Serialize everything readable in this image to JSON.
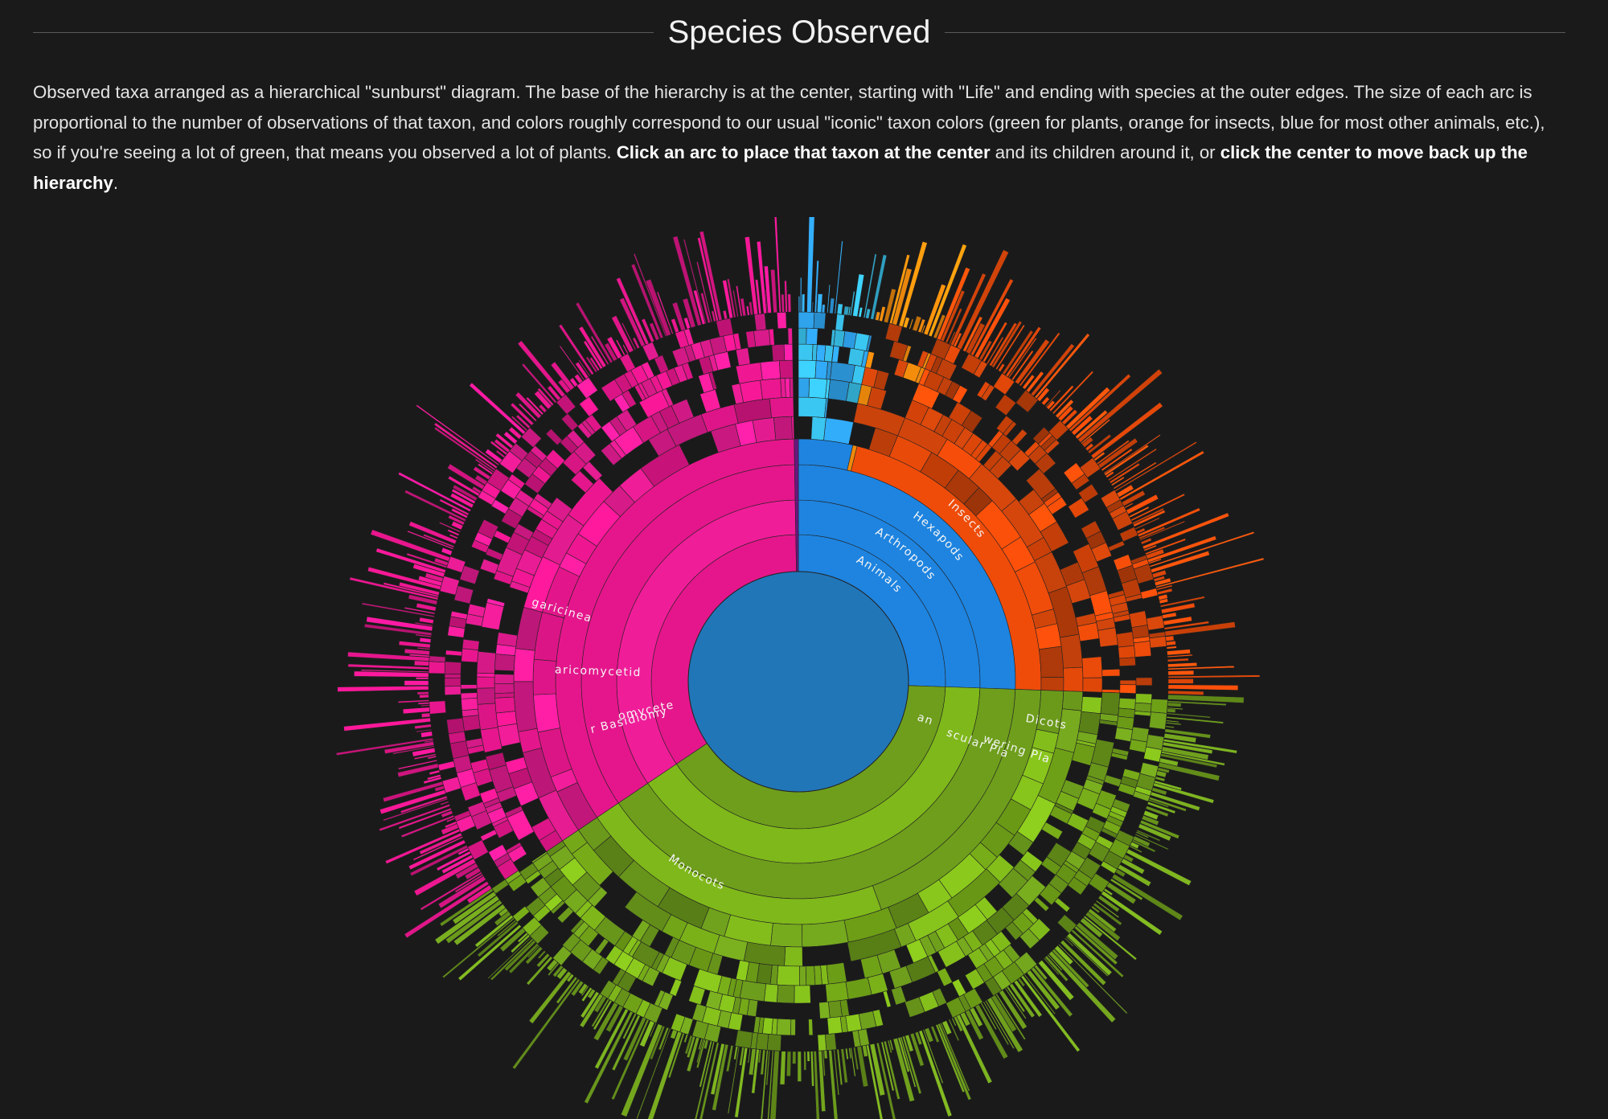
{
  "header": {
    "title": "Species Observed"
  },
  "description": {
    "part1": "Observed taxa arranged as a hierarchical \"sunburst\" diagram. The base of the hierarchy is at the center, starting with \"Life\" and ending with species at the outer edges. The size of each arc is proportional to the number of observations of that taxon, and colors roughly correspond to our usual \"iconic\" taxon colors (green for plants, orange for insects, blue for most other animals, etc.), so if you're seeing a lot of green, that means you observed a lot of plants. ",
    "bold1": "Click an arc to place that taxon at the center",
    "part2": " and its children around it, or ",
    "bold2": "click the center to move back up the hierarchy",
    "part3": "."
  },
  "sunburst": {
    "center": {
      "color": "#2176b8"
    },
    "labels": {
      "animals": "Animals",
      "arthropods": "Arthropods",
      "hexapods": "Hexapods",
      "insects": "Insects",
      "plants": "Plants",
      "vascular_plants": "Vascular Plants",
      "flowering_plants": "Flowering Plants",
      "dicots": "Dicots",
      "monocots": "Monocots",
      "fungi": "Basidiomycete Fungi",
      "higher_basidiomycetes": "Higher Basidiomycetes",
      "agaricomycetidae": "Agaricomycetidae",
      "agaricineae": "Agaricineae"
    },
    "colors": {
      "plants": "#6e9e1c",
      "plants_light": "#7fb81a",
      "animals": "#1e84e0",
      "insects": "#ef4c0a",
      "insects_dark": "#c8420b",
      "insects_amber": "#f08a0c",
      "fungi": "#e5168c",
      "fungi_light": "#f01d99",
      "other_animals": "#2e9fe6",
      "cyan": "#38bfe8"
    }
  }
}
